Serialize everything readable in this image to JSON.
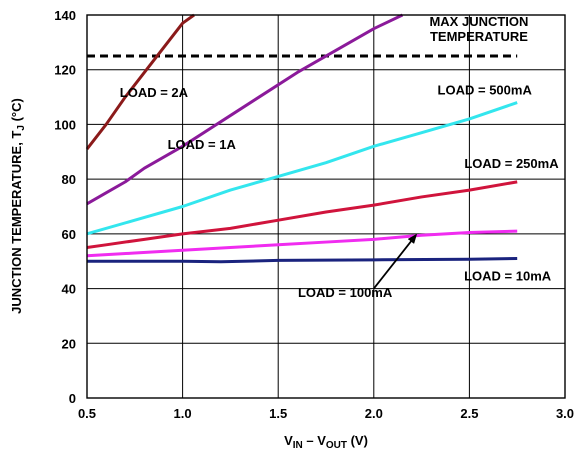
{
  "chart_data": {
    "type": "line",
    "title": "",
    "xlabel": {
      "main": "V",
      "sub1": "IN",
      "mid": " – V",
      "sub2": "OUT",
      "end": " (V)"
    },
    "ylabel": {
      "main": "JUNCTION TEMPERATURE, T",
      "sub": "J",
      "end": " (°C)"
    },
    "xlim": [
      0.5,
      3.0
    ],
    "ylim": [
      0,
      140
    ],
    "xticks": [
      "0.5",
      "1.0",
      "1.5",
      "2.0",
      "2.5",
      "3.0"
    ],
    "yticks": [
      "0",
      "20",
      "40",
      "60",
      "80",
      "100",
      "120",
      "140"
    ],
    "grid": true,
    "series": [
      {
        "name": "LOAD = 2A",
        "color": "#8b1a1a",
        "x": [
          0.5,
          0.6,
          0.7,
          0.8,
          0.9,
          1.0,
          1.06
        ],
        "y": [
          91,
          100,
          110,
          119,
          128,
          137,
          140
        ]
      },
      {
        "name": "LOAD = 1A",
        "color": "#8b1a9a",
        "x": [
          0.5,
          0.6,
          0.7,
          0.8,
          1.0,
          1.2,
          1.4,
          1.6,
          1.8,
          2.0,
          2.15
        ],
        "y": [
          71,
          75,
          79,
          84,
          92,
          101,
          110,
          119,
          127,
          135,
          140
        ]
      },
      {
        "name": "LOAD = 500mA",
        "color": "#33e6ee",
        "x": [
          0.5,
          0.75,
          1.0,
          1.25,
          1.5,
          1.75,
          2.0,
          2.25,
          2.5,
          2.75
        ],
        "y": [
          60,
          65,
          70,
          76,
          81,
          86,
          92,
          97,
          102,
          108
        ]
      },
      {
        "name": "LOAD = 250mA",
        "color": "#d0143c",
        "x": [
          0.5,
          0.6,
          0.8,
          1.0,
          1.25,
          1.5,
          1.75,
          2.0,
          2.25,
          2.5,
          2.75
        ],
        "y": [
          55,
          56,
          58,
          60,
          62,
          65,
          68,
          70.5,
          73.5,
          76,
          79
        ]
      },
      {
        "name": "LOAD = 100mA",
        "color": "#f02cf0",
        "x": [
          0.5,
          0.75,
          1.0,
          1.25,
          1.5,
          1.75,
          2.0,
          2.25,
          2.5,
          2.75
        ],
        "y": [
          52,
          53,
          54,
          55,
          56,
          57,
          58,
          59.5,
          60.5,
          61
        ]
      },
      {
        "name": "LOAD = 10mA",
        "color": "#1a237e",
        "x": [
          0.5,
          0.75,
          1.0,
          1.2,
          1.5,
          2.0,
          2.5,
          2.75
        ],
        "y": [
          50,
          50,
          50,
          49.8,
          50.3,
          50.5,
          50.7,
          51
        ]
      }
    ],
    "reference_line": {
      "label": [
        "MAX JUNCTION",
        "TEMPERATURE"
      ],
      "y": 125,
      "x_range": [
        0.5,
        2.75
      ],
      "color": "#000000"
    },
    "annotations": [
      {
        "text": "LOAD = 2A",
        "x": 0.85,
        "y": 110
      },
      {
        "text": "LOAD = 1A",
        "x": 1.1,
        "y": 91
      },
      {
        "text": "LOAD = 500mA",
        "x": 2.58,
        "y": 111
      },
      {
        "text": "LOAD = 250mA",
        "x": 2.72,
        "y": 84
      },
      {
        "text": "LOAD = 10mA",
        "x": 2.7,
        "y": 43
      },
      {
        "text": "LOAD = 100mA",
        "x": 1.85,
        "y": 37,
        "arrow_to": {
          "x": 2.22,
          "y": 59.5
        }
      }
    ]
  }
}
